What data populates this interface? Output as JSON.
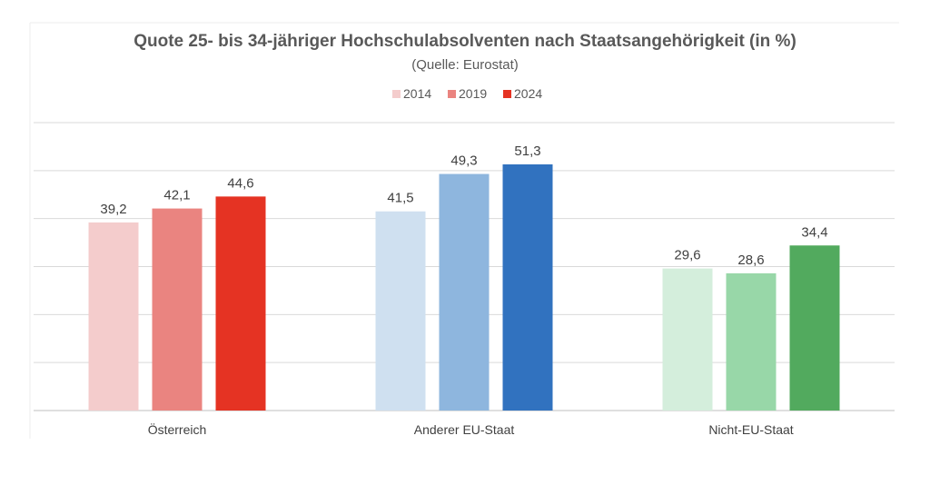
{
  "chart_data": {
    "type": "bar",
    "title": "Quote 25- bis 34-jähriger Hochschulabsolventen nach Staatsangehörigkeit (in %)",
    "subtitle": "(Quelle: Eurostat)",
    "categories": [
      "Österreich",
      "Anderer EU-Staat",
      "Nicht-EU-Staat"
    ],
    "series": [
      {
        "name": "2014",
        "values": [
          39.2,
          41.5,
          29.6
        ]
      },
      {
        "name": "2019",
        "values": [
          42.1,
          49.3,
          28.6
        ]
      },
      {
        "name": "2024",
        "values": [
          44.6,
          51.3,
          34.4
        ]
      }
    ],
    "bar_colors": [
      [
        "#f4cccc",
        "#ea8480",
        "#e53323"
      ],
      [
        "#cfe0f0",
        "#8eb6de",
        "#3172bf"
      ],
      [
        "#d4eedc",
        "#98d7a8",
        "#52aa5e"
      ]
    ],
    "legend_colors": [
      "#f4cccc",
      "#ea8480",
      "#e53323"
    ],
    "legend_position": "top",
    "ylim": [
      0,
      60
    ],
    "grid": true,
    "xlabel": "",
    "ylabel": ""
  }
}
